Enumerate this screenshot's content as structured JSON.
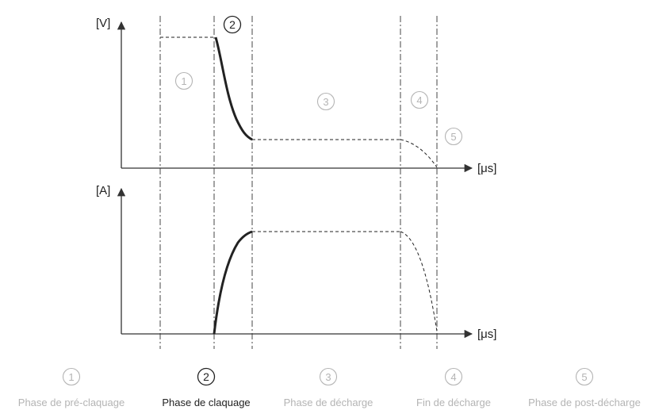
{
  "upper_axis": {
    "y_unit": "[V]",
    "x_unit": "[μs]"
  },
  "lower_axis": {
    "y_unit": "[A]",
    "x_unit": "[μs]"
  },
  "markers": {
    "upper": [
      "1",
      "2",
      "3",
      "4",
      "5"
    ]
  },
  "phases": [
    {
      "number": "1",
      "label": "Phase de pré-claquage",
      "active": false
    },
    {
      "number": "2",
      "label": "Phase de claquage",
      "active": true
    },
    {
      "number": "3",
      "label": "Phase de décharge",
      "active": false
    },
    {
      "number": "4",
      "label": "Fin de décharge",
      "active": false
    },
    {
      "number": "5",
      "label": "Phase de post-décharge",
      "active": false
    }
  ],
  "colors": {
    "active": "#222222",
    "inactive": "#b4b4b4",
    "axis": "#333333"
  }
}
